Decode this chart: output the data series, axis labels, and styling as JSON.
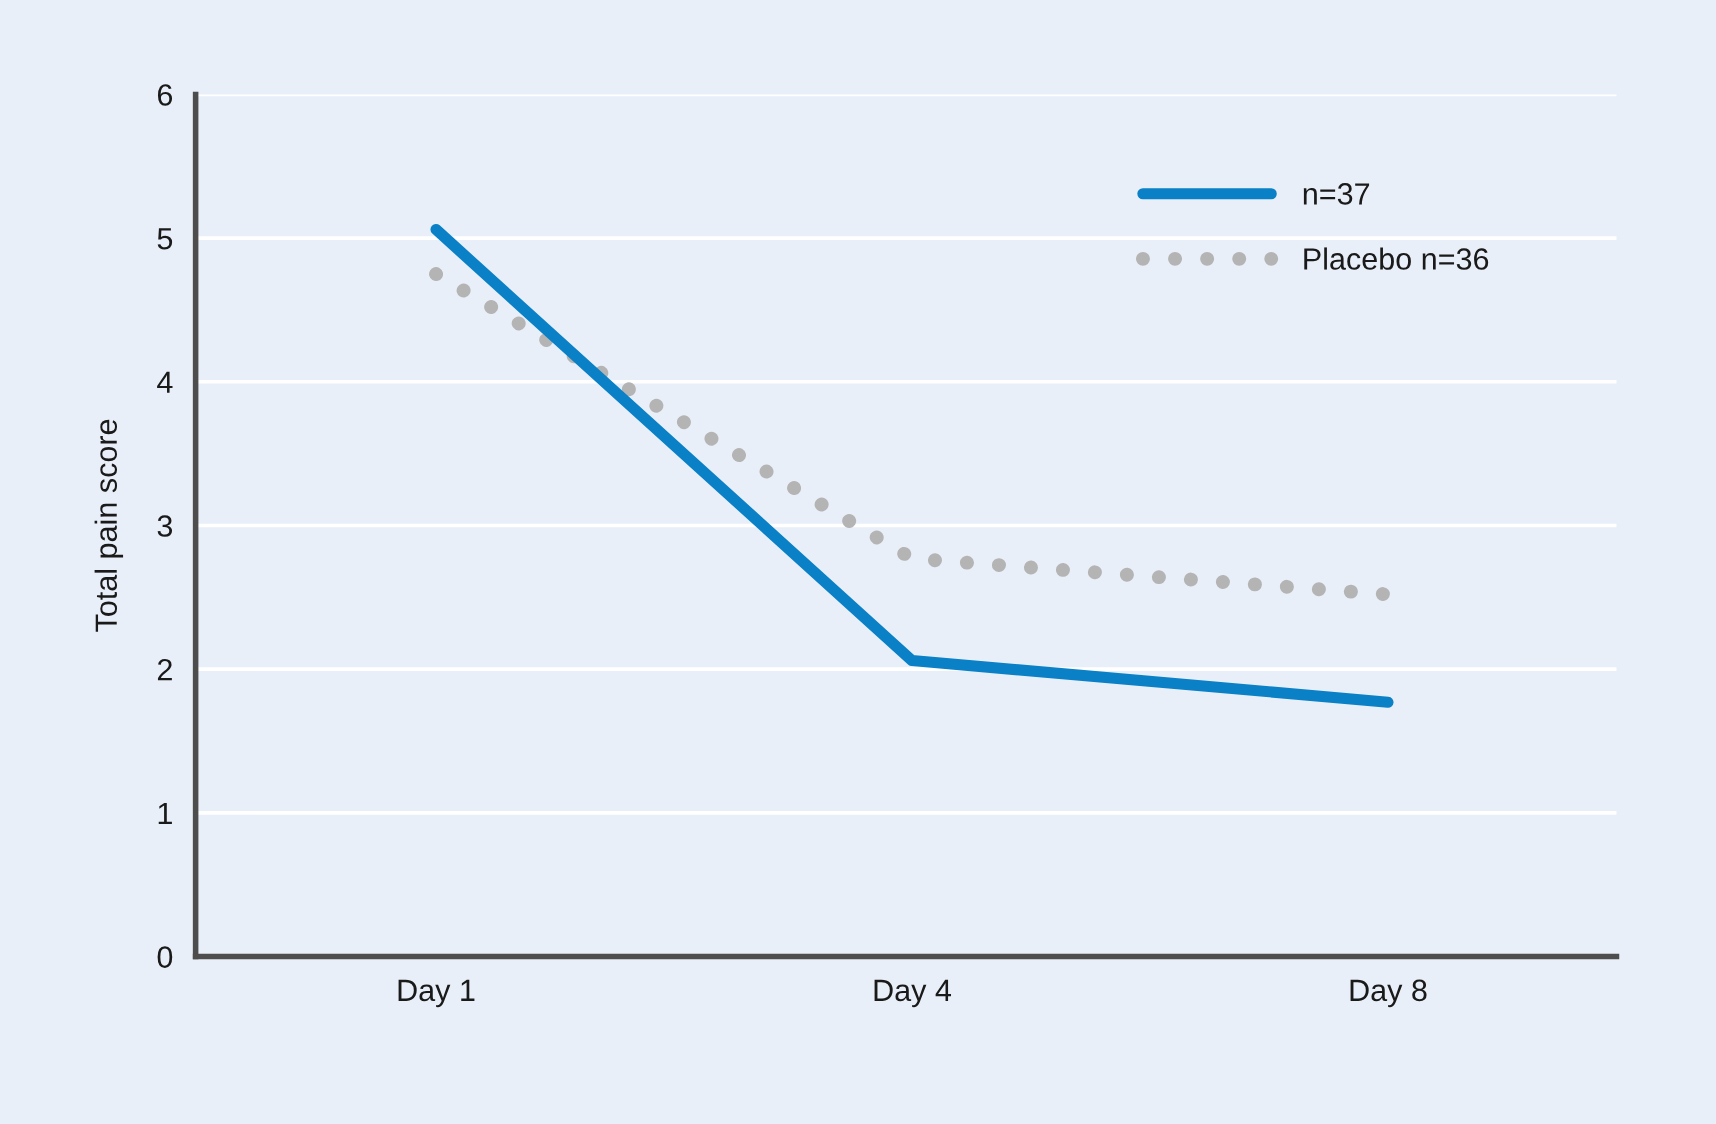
{
  "chart_data": {
    "type": "line",
    "categories": [
      "Day 1",
      "Day 4",
      "Day 8"
    ],
    "series": [
      {
        "name": "n=37",
        "color": "#0a80c6",
        "values": [
          5.06,
          2.06,
          1.77
        ],
        "line_style": "solid"
      },
      {
        "name": "Placebo n=36",
        "color": "#b4b4b4",
        "values": [
          4.75,
          2.77,
          2.52
        ],
        "line_style": "dotted"
      }
    ],
    "ylabel": "Total pain score",
    "ylim": [
      0,
      6
    ],
    "yticks": [
      0,
      1,
      2,
      3,
      4,
      5,
      6
    ],
    "grid": "y",
    "legend": "top right"
  }
}
